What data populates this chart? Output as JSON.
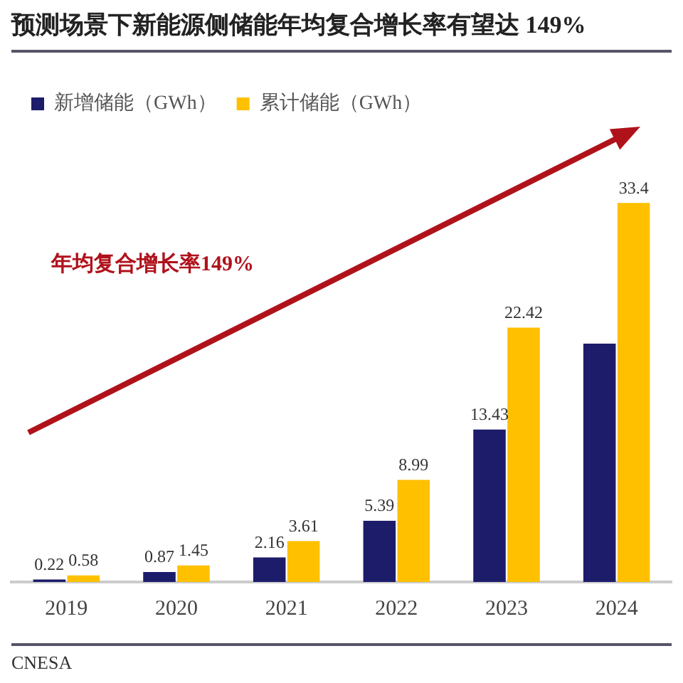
{
  "chart_data": {
    "type": "bar",
    "title": "预测场景下新能源侧储能年均复合增长率有望达 149%",
    "categories": [
      "2019",
      "2020",
      "2021",
      "2022",
      "2023",
      "2024"
    ],
    "series": [
      {
        "name": "新增储能（GWh）",
        "color": "#1c1c6b",
        "values": [
          0.22,
          0.87,
          2.16,
          5.39,
          13.43,
          21
        ],
        "value_labels": [
          "0.22",
          "0.87",
          "2.16",
          "5.39",
          "13.43",
          null
        ]
      },
      {
        "name": "累计储能（GWh）",
        "color": "#ffc000",
        "values": [
          0.58,
          1.45,
          3.61,
          8.99,
          22.42,
          33.4
        ],
        "value_labels": [
          "0.58",
          "1.45",
          "3.61",
          "8.99",
          "22.42",
          "33.4"
        ]
      }
    ],
    "legend": "top left",
    "grid": false,
    "tick_labels": "x",
    "annotations": [
      "年均复合增长率149%",
      "CNESA"
    ]
  }
}
